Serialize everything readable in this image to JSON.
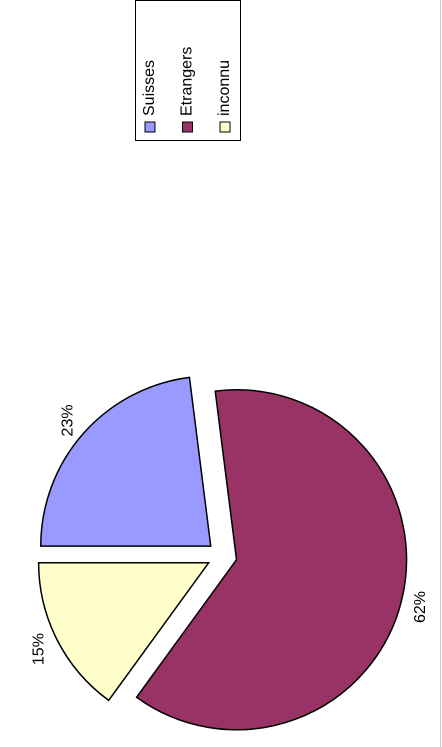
{
  "chart_data": {
    "type": "pie",
    "categories": [
      "Suisses",
      "Etrangers",
      "inconnu"
    ],
    "values": [
      23,
      62,
      15
    ],
    "value_labels": [
      "23%",
      "62%",
      "15%"
    ],
    "colors": [
      "#9999ff",
      "#993366",
      "#ffffcc"
    ],
    "legend": "top-right"
  }
}
